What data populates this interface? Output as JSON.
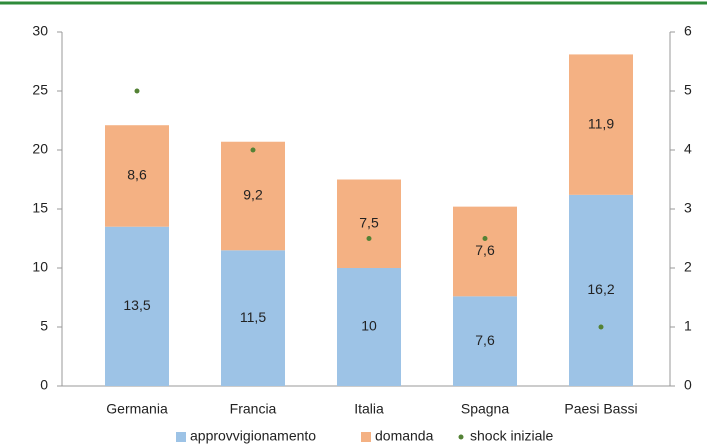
{
  "chart_data": {
    "type": "bar",
    "categories": [
      "Germania",
      "Francia",
      "Italia",
      "Spagna",
      "Paesi Bassi"
    ],
    "series": [
      {
        "name": "approvvigionamento",
        "color": "#9dc3e6",
        "values": [
          13.5,
          11.5,
          10,
          7.6,
          16.2
        ],
        "value_labels": [
          "13,5",
          "11,5",
          "10",
          "7,6",
          "16,2"
        ]
      },
      {
        "name": "domanda",
        "color": "#f4b183",
        "values": [
          8.6,
          9.2,
          7.5,
          7.6,
          11.9
        ],
        "value_labels": [
          "8,6",
          "9,2",
          "7,5",
          "7,6",
          "11,9"
        ]
      },
      {
        "name": "shock iniziale",
        "color": "#548235",
        "axis": "y2",
        "marker": "dot",
        "values": [
          5,
          4,
          2.5,
          2.5,
          1
        ]
      }
    ],
    "stacked": true,
    "ylim": [
      0,
      30
    ],
    "yticks": [
      0,
      5,
      10,
      15,
      20,
      25,
      30
    ],
    "y2lim": [
      0,
      6
    ],
    "y2ticks": [
      0,
      1,
      2,
      3,
      4,
      5,
      6
    ],
    "legend": "bottom"
  }
}
